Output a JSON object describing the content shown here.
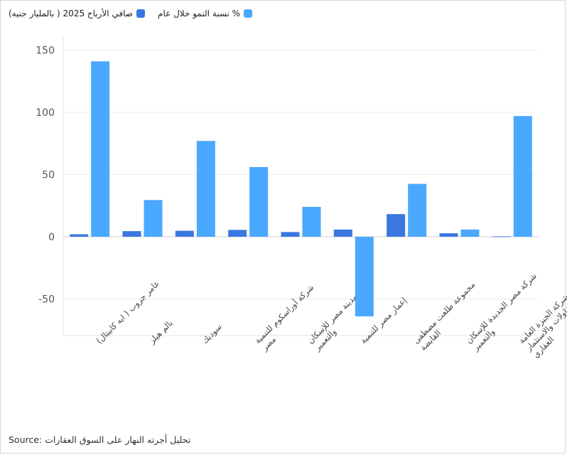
{
  "chart_data": {
    "type": "bar",
    "categories": [
      "عامر جروب ( ايه كابيتال)",
      "بالم هيلز",
      "سوديك",
      "شركة أوراسكوم للتنمية مصر",
      "مدينة مصر للإسكان والتعمير",
      "إعمار مصر للتنمية",
      "مجموعة طلعت مصطفى القابضة",
      "شركة مصر الجديدة للإسكان والتعمير",
      "شركة الجيزة العامة للمقاولات والاستثمار العقاري"
    ],
    "series": [
      {
        "name": "صافي الأرباح 2025 ( بالمليار جنيه)",
        "color": "#3a78e0",
        "values": [
          2,
          4.5,
          4.8,
          5.5,
          3.8,
          5.8,
          18.2,
          2.8,
          0.3
        ]
      },
      {
        "name": "% نسبة النمو خلال عام",
        "color": "#4aa8ff",
        "values": [
          141,
          29.5,
          77,
          56,
          24,
          -64,
          42.5,
          5.8,
          97
        ]
      }
    ],
    "ylim": [
      -80,
      160
    ],
    "yticks": [
      -50,
      0,
      50,
      100,
      150
    ],
    "grid": true,
    "legend_position": "top-left"
  },
  "source": "Source: تحليل أجرته النهار على السوق العقارات"
}
